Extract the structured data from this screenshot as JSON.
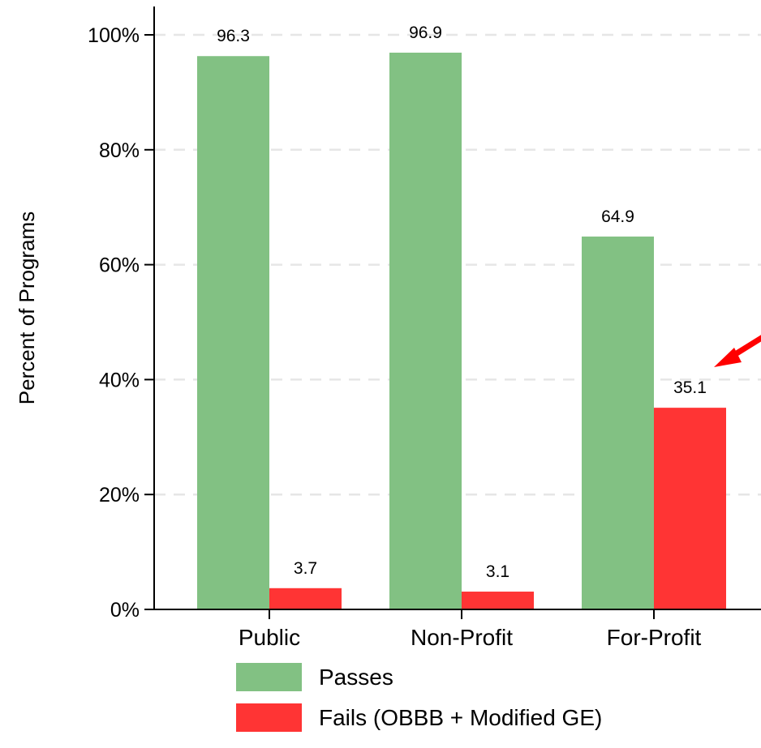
{
  "chart_data": {
    "type": "bar",
    "categories": [
      "Public",
      "Non-Profit",
      "For-Profit"
    ],
    "series": [
      {
        "name": "Passes",
        "values": [
          96.3,
          96.9,
          64.9
        ],
        "color": "#82C183"
      },
      {
        "name": "Fails (OBBB + Modified GE)",
        "values": [
          3.7,
          3.1,
          35.1
        ],
        "color": "#FF3434"
      }
    ],
    "data_labels": [
      [
        "96.3",
        "96.9",
        "64.9"
      ],
      [
        "3.7",
        "3.1",
        "35.1"
      ]
    ],
    "ylabel": "Percent of Programs",
    "xlabel": "",
    "ylim": [
      0,
      100
    ],
    "yticks": [
      0,
      20,
      40,
      60,
      80,
      100
    ],
    "ytick_labels": [
      "0%",
      "20%",
      "40%",
      "60%",
      "80%",
      "100%"
    ],
    "grid": "horizontal dashed",
    "legend_position": "bottom",
    "annotation": {
      "type": "arrow",
      "color": "#FF0000",
      "points_to": "For-Profit Fails bar"
    }
  }
}
